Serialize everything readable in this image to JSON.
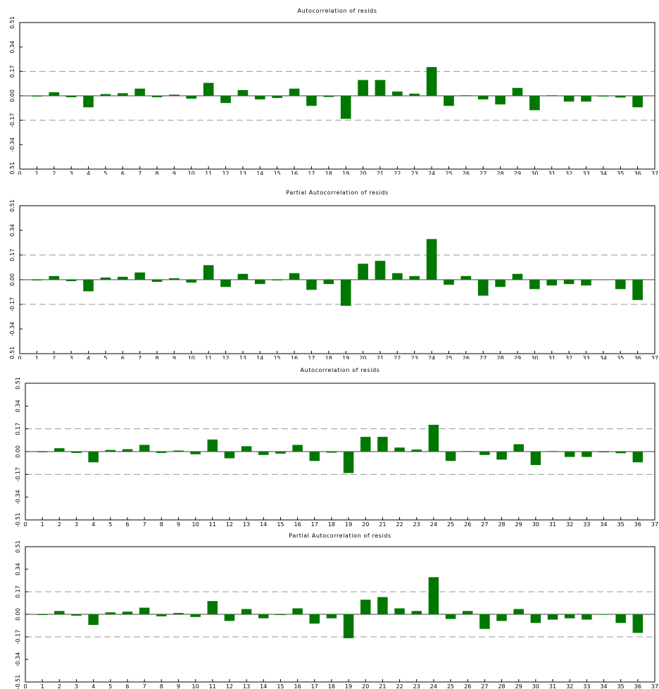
{
  "colors": {
    "bar": "#007700",
    "band": "#999999",
    "frame": "#000000"
  },
  "chart_data": [
    {
      "type": "bar",
      "title": "Autocorrelation of resids",
      "xlabel": "",
      "ylabel": "",
      "x": [
        1,
        2,
        3,
        4,
        5,
        6,
        7,
        8,
        9,
        10,
        11,
        12,
        13,
        14,
        15,
        16,
        17,
        18,
        19,
        20,
        21,
        22,
        23,
        24,
        25,
        26,
        27,
        28,
        29,
        30,
        31,
        32,
        33,
        34,
        35,
        36
      ],
      "values": [
        -0.005,
        0.025,
        -0.01,
        -0.08,
        0.012,
        0.018,
        0.05,
        -0.01,
        0.008,
        -0.02,
        0.09,
        -0.05,
        0.04,
        -0.025,
        -0.015,
        0.05,
        -0.07,
        -0.008,
        -0.16,
        0.11,
        0.11,
        0.03,
        0.015,
        0.2,
        -0.07,
        0.004,
        -0.025,
        -0.06,
        0.055,
        -0.1,
        0.004,
        -0.04,
        -0.04,
        -0.004,
        -0.012,
        -0.08
      ],
      "confidence_band": 0.17,
      "xlim": [
        0,
        37
      ],
      "ylim": [
        -0.51,
        0.51
      ],
      "x_ticks": [
        "0",
        "1",
        "2",
        "3",
        "4",
        "5",
        "6",
        "7",
        "8",
        "9",
        "10",
        "11",
        "12",
        "13",
        "14",
        "15",
        "16",
        "17",
        "18",
        "19",
        "20",
        "21",
        "22",
        "23",
        "24",
        "25",
        "26",
        "27",
        "28",
        "29",
        "30",
        "31",
        "32",
        "33",
        "34",
        "35",
        "36",
        "37"
      ],
      "y_ticks": [
        "0.51",
        "0.34",
        "0.17",
        "0.00",
        "-0.17",
        "-0.34",
        "-0.51"
      ]
    },
    {
      "type": "bar",
      "title": "Partial Autocorrelation of resids",
      "xlabel": "",
      "ylabel": "",
      "x": [
        1,
        2,
        3,
        4,
        5,
        6,
        7,
        8,
        9,
        10,
        11,
        12,
        13,
        14,
        15,
        16,
        17,
        18,
        19,
        20,
        21,
        22,
        23,
        24,
        25,
        26,
        27,
        28,
        29,
        30,
        31,
        32,
        33,
        34,
        35,
        36
      ],
      "values": [
        -0.005,
        0.025,
        -0.01,
        -0.08,
        0.015,
        0.02,
        0.05,
        -0.015,
        0.01,
        -0.02,
        0.1,
        -0.05,
        0.04,
        -0.03,
        -0.005,
        0.045,
        -0.07,
        -0.03,
        -0.18,
        0.11,
        0.13,
        0.045,
        0.025,
        0.28,
        -0.035,
        0.025,
        -0.11,
        -0.05,
        0.04,
        -0.065,
        -0.04,
        -0.03,
        -0.04,
        0.002,
        -0.065,
        -0.14
      ],
      "confidence_band": 0.17,
      "xlim": [
        0,
        37
      ],
      "ylim": [
        -0.51,
        0.51
      ],
      "x_ticks": [
        "0",
        "1",
        "2",
        "3",
        "4",
        "5",
        "6",
        "7",
        "8",
        "9",
        "10",
        "11",
        "12",
        "13",
        "14",
        "15",
        "16",
        "17",
        "18",
        "19",
        "20",
        "21",
        "22",
        "23",
        "24",
        "25",
        "26",
        "27",
        "28",
        "29",
        "30",
        "31",
        "32",
        "33",
        "34",
        "35",
        "36",
        "37"
      ],
      "y_ticks": [
        "0.51",
        "0.34",
        "0.17",
        "0.00",
        "-0.17",
        "-0.34",
        "-0.51"
      ]
    },
    {
      "type": "bar",
      "title": "Autocorrelation of resids",
      "xlabel": "",
      "ylabel": "",
      "x": [
        1,
        2,
        3,
        4,
        5,
        6,
        7,
        8,
        9,
        10,
        11,
        12,
        13,
        14,
        15,
        16,
        17,
        18,
        19,
        20,
        21,
        22,
        23,
        24,
        25,
        26,
        27,
        28,
        29,
        30,
        31,
        32,
        33,
        34,
        35,
        36
      ],
      "values": [
        -0.005,
        0.025,
        -0.01,
        -0.08,
        0.012,
        0.018,
        0.05,
        -0.01,
        0.008,
        -0.02,
        0.09,
        -0.05,
        0.04,
        -0.025,
        -0.015,
        0.05,
        -0.07,
        -0.008,
        -0.16,
        0.11,
        0.11,
        0.03,
        0.015,
        0.2,
        -0.07,
        0.004,
        -0.025,
        -0.06,
        0.055,
        -0.1,
        0.004,
        -0.04,
        -0.04,
        -0.004,
        -0.012,
        -0.08
      ],
      "confidence_band": 0.17,
      "xlim": [
        0,
        37
      ],
      "ylim": [
        -0.51,
        0.51
      ],
      "x_ticks": [
        "0",
        "1",
        "2",
        "3",
        "4",
        "5",
        "6",
        "7",
        "8",
        "9",
        "10",
        "11",
        "12",
        "13",
        "14",
        "15",
        "16",
        "17",
        "18",
        "19",
        "20",
        "21",
        "22",
        "23",
        "24",
        "25",
        "26",
        "27",
        "28",
        "29",
        "30",
        "31",
        "32",
        "33",
        "34",
        "35",
        "36",
        "37"
      ],
      "y_ticks": [
        "0.51",
        "0.34",
        "0.17",
        "0.00",
        "-0.17",
        "-0.34",
        "-0.51"
      ]
    },
    {
      "type": "bar",
      "title": "Partial Autocorrelation of resids",
      "xlabel": "",
      "ylabel": "",
      "x": [
        1,
        2,
        3,
        4,
        5,
        6,
        7,
        8,
        9,
        10,
        11,
        12,
        13,
        14,
        15,
        16,
        17,
        18,
        19,
        20,
        21,
        22,
        23,
        24,
        25,
        26,
        27,
        28,
        29,
        30,
        31,
        32,
        33,
        34,
        35,
        36
      ],
      "values": [
        -0.005,
        0.025,
        -0.01,
        -0.08,
        0.015,
        0.02,
        0.05,
        -0.015,
        0.01,
        -0.02,
        0.1,
        -0.05,
        0.04,
        -0.03,
        -0.005,
        0.045,
        -0.07,
        -0.03,
        -0.18,
        0.11,
        0.13,
        0.045,
        0.025,
        0.28,
        -0.035,
        0.025,
        -0.11,
        -0.05,
        0.04,
        -0.065,
        -0.04,
        -0.03,
        -0.04,
        0.002,
        -0.065,
        -0.14
      ],
      "confidence_band": 0.17,
      "xlim": [
        0,
        37
      ],
      "ylim": [
        -0.51,
        0.51
      ],
      "x_ticks": [
        "0",
        "1",
        "2",
        "3",
        "4",
        "5",
        "6",
        "7",
        "8",
        "9",
        "10",
        "11",
        "12",
        "13",
        "14",
        "15",
        "16",
        "17",
        "18",
        "19",
        "20",
        "21",
        "22",
        "23",
        "24",
        "25",
        "26",
        "27",
        "28",
        "29",
        "30",
        "31",
        "32",
        "33",
        "34",
        "35",
        "36",
        "37"
      ],
      "y_ticks": [
        "0.51",
        "0.34",
        "0.17",
        "0.00",
        "-0.17",
        "-0.34",
        "-0.51"
      ]
    }
  ]
}
